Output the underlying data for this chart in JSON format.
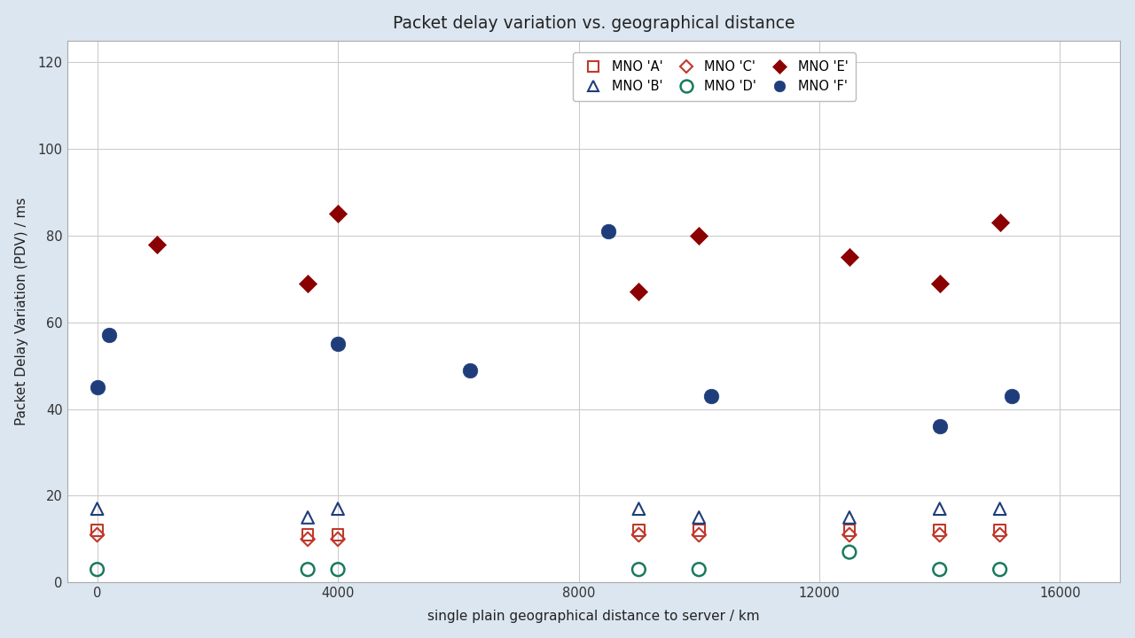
{
  "title": "Packet delay variation vs. geographical distance",
  "xlabel": "single plain geographical distance to server / km",
  "ylabel": "Packet Delay Variation (PDV) / ms",
  "xlim": [
    -500,
    17000
  ],
  "ylim": [
    0,
    125
  ],
  "xticks": [
    0,
    4000,
    8000,
    12000,
    16000
  ],
  "yticks": [
    0,
    20,
    40,
    60,
    80,
    100,
    120
  ],
  "background_color": "#dce6f0",
  "plot_bg": "#ffffff",
  "series": {
    "A": {
      "label": "MNO 'A'",
      "marker": "s",
      "color": "#c0392b",
      "filled": false,
      "size": 55,
      "lw": 1.5,
      "x": [
        0,
        3500,
        4000,
        9000,
        10000,
        12500,
        14000,
        15000
      ],
      "y": [
        12,
        11,
        11,
        12,
        12,
        12,
        12,
        12
      ]
    },
    "B": {
      "label": "MNO 'B'",
      "marker": "^",
      "color": "#1f3d7a",
      "filled": false,
      "size": 65,
      "lw": 1.5,
      "x": [
        0,
        3500,
        4000,
        9000,
        10000,
        12500,
        14000,
        15000
      ],
      "y": [
        17,
        15,
        17,
        17,
        15,
        15,
        17,
        17
      ]
    },
    "C": {
      "label": "MNO 'C'",
      "marker": "D",
      "color": "#c0392b",
      "filled": false,
      "size": 42,
      "lw": 1.5,
      "x": [
        0,
        3500,
        4000,
        9000,
        10000,
        12500,
        14000,
        15000
      ],
      "y": [
        11,
        10,
        10,
        11,
        11,
        11,
        11,
        11
      ]
    },
    "D": {
      "label": "MNO 'D'",
      "marker": "o",
      "color": "#1a7a5e",
      "filled": false,
      "size": 75,
      "lw": 1.8,
      "x": [
        0,
        3500,
        4000,
        9000,
        10000,
        12500,
        14000,
        15000
      ],
      "y": [
        3,
        3,
        3,
        3,
        3,
        7,
        3,
        3
      ]
    },
    "E": {
      "label": "MNO 'E'",
      "marker": "D",
      "color": "#8b0000",
      "filled": true,
      "size": 70,
      "lw": 0.5,
      "x": [
        1000,
        3500,
        4000,
        9000,
        10000,
        12500,
        14000,
        15000
      ],
      "y": [
        78,
        69,
        85,
        67,
        80,
        75,
        69,
        83
      ]
    },
    "F": {
      "label": "MNO 'F'",
      "marker": "o",
      "color": "#1f3d7a",
      "filled": true,
      "size": 95,
      "lw": 0.5,
      "x": [
        0,
        200,
        4000,
        6200,
        8500,
        10200,
        14000,
        15200
      ],
      "y": [
        45,
        57,
        55,
        49,
        81,
        43,
        36,
        43
      ]
    }
  },
  "legend_order": [
    "A",
    "B",
    "C",
    "D",
    "E",
    "F"
  ]
}
